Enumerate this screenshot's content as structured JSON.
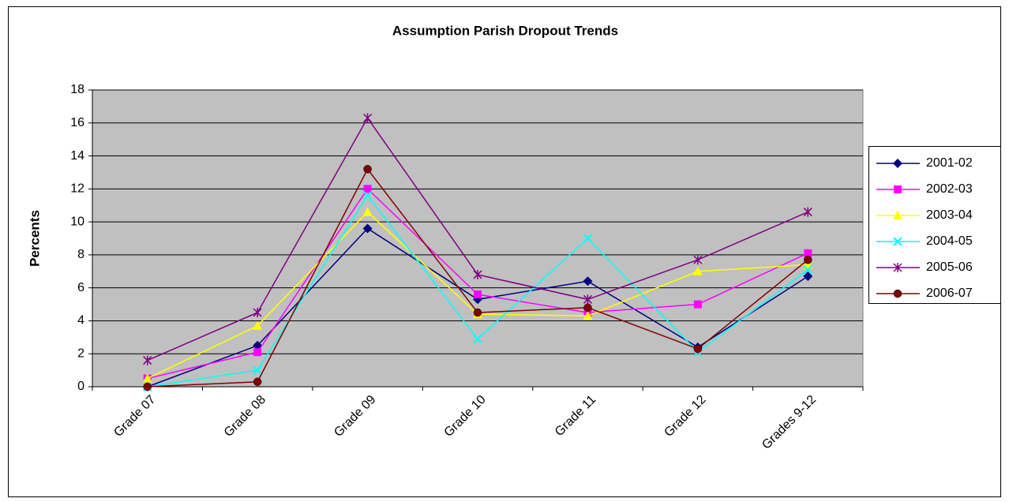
{
  "chart_data": {
    "type": "line",
    "title": "Assumption Parish Dropout Trends",
    "y_label": "Percents",
    "categories": [
      "Grade 07",
      "Grade 08",
      "Grade 09",
      "Grade 10",
      "Grade 11",
      "Grade 12",
      "Grades 9-12"
    ],
    "series": [
      {
        "name": "2001-02",
        "color": "#000080",
        "marker": "diamond",
        "values": [
          0,
          2.5,
          9.6,
          5.3,
          6.4,
          2.4,
          6.7
        ]
      },
      {
        "name": "2002-03",
        "color": "#ff00ff",
        "marker": "square",
        "values": [
          0.5,
          2.1,
          12.0,
          5.6,
          4.5,
          5.0,
          8.1
        ]
      },
      {
        "name": "2003-04",
        "color": "#ffff00",
        "marker": "triangle",
        "values": [
          0.5,
          3.7,
          10.6,
          4.4,
          4.3,
          7.0,
          7.4
        ]
      },
      {
        "name": "2004-05",
        "color": "#00ffff",
        "marker": "x",
        "values": [
          0,
          1.0,
          11.6,
          2.9,
          9.0,
          2.1,
          7.1
        ]
      },
      {
        "name": "2005-06",
        "color": "#800080",
        "marker": "star",
        "values": [
          1.6,
          4.5,
          16.3,
          6.8,
          5.3,
          7.7,
          10.6
        ]
      },
      {
        "name": "2006-07",
        "color": "#800000",
        "marker": "circle",
        "values": [
          0,
          0.3,
          13.2,
          4.5,
          4.8,
          2.3,
          7.7
        ]
      }
    ],
    "ylim": [
      0,
      18
    ],
    "yticks": [
      0,
      2,
      4,
      6,
      8,
      10,
      12,
      14,
      16,
      18
    ],
    "grid": true,
    "plot_background": "#c0c0c0",
    "legend": "right"
  }
}
